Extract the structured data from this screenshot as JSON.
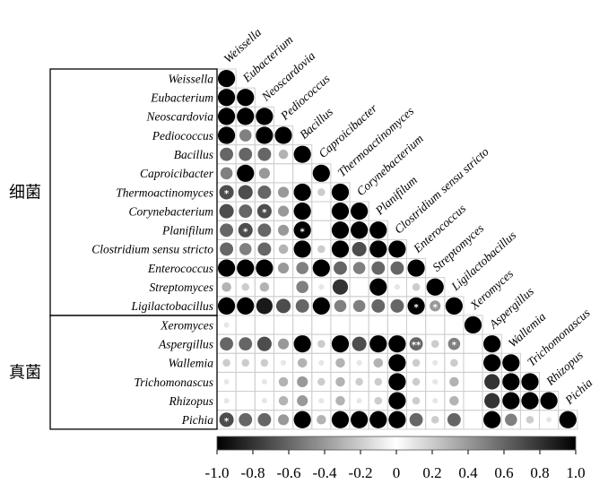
{
  "chart_data": {
    "type": "heatmap",
    "labels": [
      "Weissella",
      "Eubacterium",
      "Neoscardovia",
      "Pediococcus",
      "Bacillus",
      "Caproicibacter",
      "Thermoactinomyces",
      "Corynebacterium",
      "Planifilum",
      "Clostridium sensu stricto",
      "Enterococcus",
      "Streptomyces",
      "Ligilactobacillus",
      "Xeromyces",
      "Aspergillus",
      "Wallemia",
      "Trichomonascus",
      "Rhizopus",
      "Pichia"
    ],
    "groups": [
      {
        "name": "细菌",
        "from": 0,
        "to": 12
      },
      {
        "name": "真菌",
        "from": 13,
        "to": 18
      }
    ],
    "matrix": [
      [
        1.0
      ],
      [
        1.0,
        1.0
      ],
      [
        1.0,
        1.0,
        1.0
      ],
      [
        1.0,
        -0.5,
        1.0,
        1.0
      ],
      [
        -0.6,
        -0.6,
        -0.6,
        -0.3,
        1.0
      ],
      [
        -0.5,
        1.0,
        -0.4,
        0.0,
        0.0,
        1.0
      ],
      [
        -0.7,
        -0.7,
        -0.6,
        -0.4,
        1.0,
        -0.2,
        1.0
      ],
      [
        -0.7,
        -0.6,
        -0.7,
        -0.4,
        1.0,
        0.0,
        1.0,
        1.0
      ],
      [
        -0.6,
        -0.7,
        -0.6,
        -0.4,
        1.0,
        0.0,
        1.0,
        1.0,
        1.0
      ],
      [
        -0.6,
        -0.5,
        -0.6,
        -0.3,
        1.0,
        -0.2,
        1.0,
        0.7,
        1.0,
        1.0
      ],
      [
        1.0,
        1.0,
        1.0,
        -0.4,
        -0.5,
        1.0,
        -0.6,
        -0.5,
        -0.6,
        -0.6,
        1.0
      ],
      [
        -0.3,
        -0.2,
        -0.3,
        0.0,
        0.5,
        -0.1,
        0.8,
        0.0,
        1.0,
        0.1,
        -0.2,
        1.0
      ],
      [
        1.0,
        1.0,
        0.9,
        -0.7,
        -0.6,
        1.0,
        -0.5,
        -0.5,
        -0.6,
        -0.6,
        1.0,
        -0.4,
        1.0
      ],
      [
        -0.1,
        0.0,
        0.0,
        0.0,
        0.0,
        0.0,
        0.0,
        0.0,
        0.0,
        0.0,
        0.0,
        0.0,
        0.0,
        1.0
      ],
      [
        -0.6,
        -0.6,
        -0.7,
        -0.4,
        1.0,
        -0.2,
        1.0,
        0.7,
        1.0,
        1.0,
        -0.6,
        0.2,
        -0.5,
        0.0,
        1.0
      ],
      [
        -0.2,
        -0.2,
        -0.2,
        -0.1,
        0.3,
        -0.1,
        0.3,
        0.1,
        0.3,
        1.0,
        -0.2,
        0.1,
        -0.2,
        0.0,
        1.0,
        1.0
      ],
      [
        -0.1,
        0.0,
        -0.1,
        -0.3,
        -0.4,
        -0.2,
        -0.3,
        -0.2,
        -0.2,
        1.0,
        -0.2,
        0.1,
        -0.3,
        0.0,
        0.8,
        1.0,
        1.0
      ],
      [
        -0.1,
        0.0,
        -0.1,
        -0.3,
        -0.4,
        -0.1,
        -0.3,
        -0.1,
        -0.2,
        1.0,
        -0.2,
        0.1,
        -0.3,
        0.0,
        0.8,
        1.0,
        1.0,
        1.0
      ],
      [
        -0.7,
        -0.6,
        -0.6,
        -0.4,
        1.0,
        -0.3,
        1.0,
        1.0,
        1.0,
        1.0,
        -0.6,
        0.2,
        -0.6,
        0.0,
        1.0,
        0.5,
        0.2,
        0.1,
        1.0
      ]
    ],
    "significance": [
      {
        "row": "Thermoactinomyces",
        "col": "Weissella",
        "mark": "*"
      },
      {
        "row": "Corynebacterium",
        "col": "Neoscardovia",
        "mark": "*"
      },
      {
        "row": "Planifilum",
        "col": "Eubacterium",
        "mark": "*"
      },
      {
        "row": "Planifilum",
        "col": "Bacillus",
        "mark": "*"
      },
      {
        "row": "Ligilactobacillus",
        "col": "Enterococcus",
        "mark": "*"
      },
      {
        "row": "Ligilactobacillus",
        "col": "Streptomyces",
        "mark": "*"
      },
      {
        "row": "Aspergillus",
        "col": "Enterococcus",
        "mark": "**"
      },
      {
        "row": "Aspergillus",
        "col": "Ligilactobacillus",
        "mark": "*"
      },
      {
        "row": "Pichia",
        "col": "Weissella",
        "mark": "*"
      }
    ],
    "colorbar": {
      "min": -1.0,
      "max": 1.0,
      "ticks": [
        "-1.0",
        "-0.8",
        "-0.6",
        "-0.4",
        "-0.2",
        "0",
        "0.2",
        "0.4",
        "0.6",
        "0.8",
        "1.0"
      ]
    },
    "grid": true
  }
}
